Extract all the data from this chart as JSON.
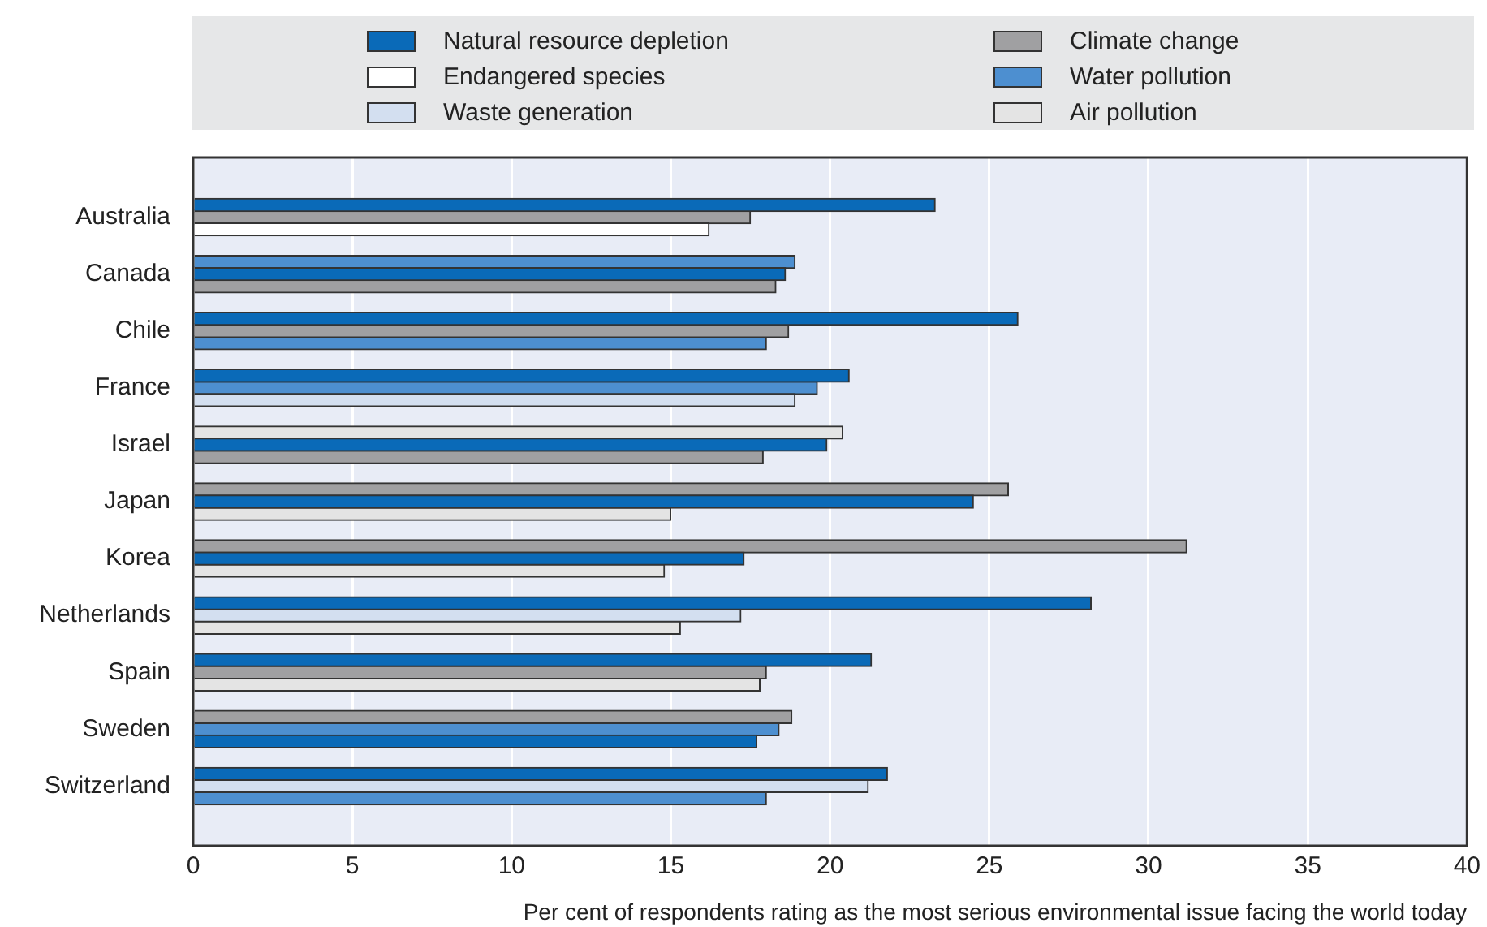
{
  "chart_data": {
    "type": "bar",
    "orientation": "horizontal",
    "xlabel": "Per cent of respondents rating as the most serious environmental issue facing the world today",
    "categories": [
      "Australia",
      "Canada",
      "Chile",
      "France",
      "Israel",
      "Japan",
      "Korea",
      "Netherlands",
      "Spain",
      "Sweden",
      "Switzerland"
    ],
    "series": [
      {
        "name": "Natural resource depletion",
        "color": "#0a6ab8",
        "values": [
          23.3,
          18.6,
          25.9,
          20.6,
          19.9,
          24.5,
          17.3,
          28.2,
          21.3,
          17.7,
          21.8
        ]
      },
      {
        "name": "Endangered species",
        "color": "#ffffff",
        "values": [
          16.2,
          null,
          null,
          null,
          null,
          null,
          null,
          null,
          null,
          null,
          null
        ]
      },
      {
        "name": "Waste generation",
        "color": "#d3dff0",
        "values": [
          null,
          null,
          null,
          18.9,
          null,
          null,
          null,
          17.2,
          null,
          null,
          21.2
        ]
      },
      {
        "name": "Climate change",
        "color": "#a0a0a2",
        "values": [
          17.5,
          18.3,
          18.7,
          null,
          17.9,
          25.6,
          31.2,
          null,
          18.0,
          18.8,
          null
        ]
      },
      {
        "name": "Water pollution",
        "color": "#4d8fd0",
        "values": [
          null,
          18.9,
          18.0,
          19.6,
          null,
          null,
          null,
          null,
          null,
          18.4,
          18.0
        ]
      },
      {
        "name": "Air pollution",
        "color": "#e4e4e4",
        "values": [
          null,
          null,
          null,
          null,
          20.4,
          15.0,
          14.8,
          15.3,
          17.8,
          null,
          null
        ]
      }
    ],
    "xlim": [
      0,
      40
    ],
    "xticks": [
      0,
      5,
      10,
      15,
      20,
      25,
      30,
      35,
      40
    ],
    "grid": "x",
    "legend": "top"
  }
}
